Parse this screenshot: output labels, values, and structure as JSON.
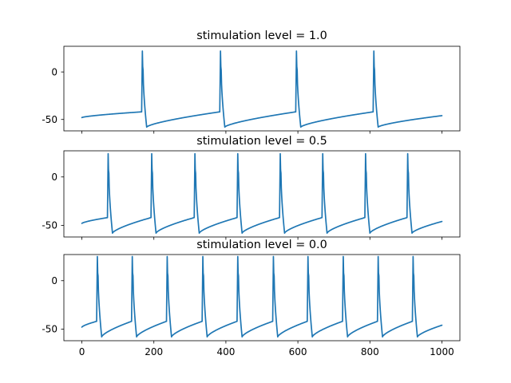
{
  "chart_data": [
    {
      "type": "line",
      "title": "stimulation level = 1.0",
      "xlim": [
        -50,
        1050
      ],
      "ylim": [
        -62,
        27
      ],
      "yticks": [
        0,
        -50
      ],
      "xticks": [],
      "resting_mv": -48,
      "peak_mv": 22,
      "trough_mv": -58,
      "spike_times_ms": [
        168,
        385,
        596,
        811
      ],
      "series": [
        {
          "color": "#1f77b4"
        }
      ]
    },
    {
      "type": "line",
      "title": "stimulation level = 0.5",
      "xlim": [
        -50,
        1050
      ],
      "ylim": [
        -62,
        27
      ],
      "yticks": [
        0,
        -50
      ],
      "xticks": [],
      "resting_mv": -48,
      "peak_mv": 24,
      "trough_mv": -58,
      "spike_times_ms": [
        73,
        194,
        314,
        433,
        551,
        669,
        788,
        905
      ],
      "series": [
        {
          "color": "#1f77b4"
        }
      ]
    },
    {
      "type": "line",
      "title": "stimulation level = 0.0",
      "xlim": [
        -50,
        1050
      ],
      "ylim": [
        -62,
        27
      ],
      "yticks": [
        0,
        -50
      ],
      "xticks": [
        0,
        200,
        400,
        600,
        800,
        1000
      ],
      "resting_mv": -48,
      "peak_mv": 25,
      "trough_mv": -58,
      "spike_times_ms": [
        43,
        140,
        237,
        336,
        433,
        532,
        628,
        726,
        823,
        920
      ],
      "series": [
        {
          "color": "#1f77b4"
        }
      ]
    }
  ]
}
